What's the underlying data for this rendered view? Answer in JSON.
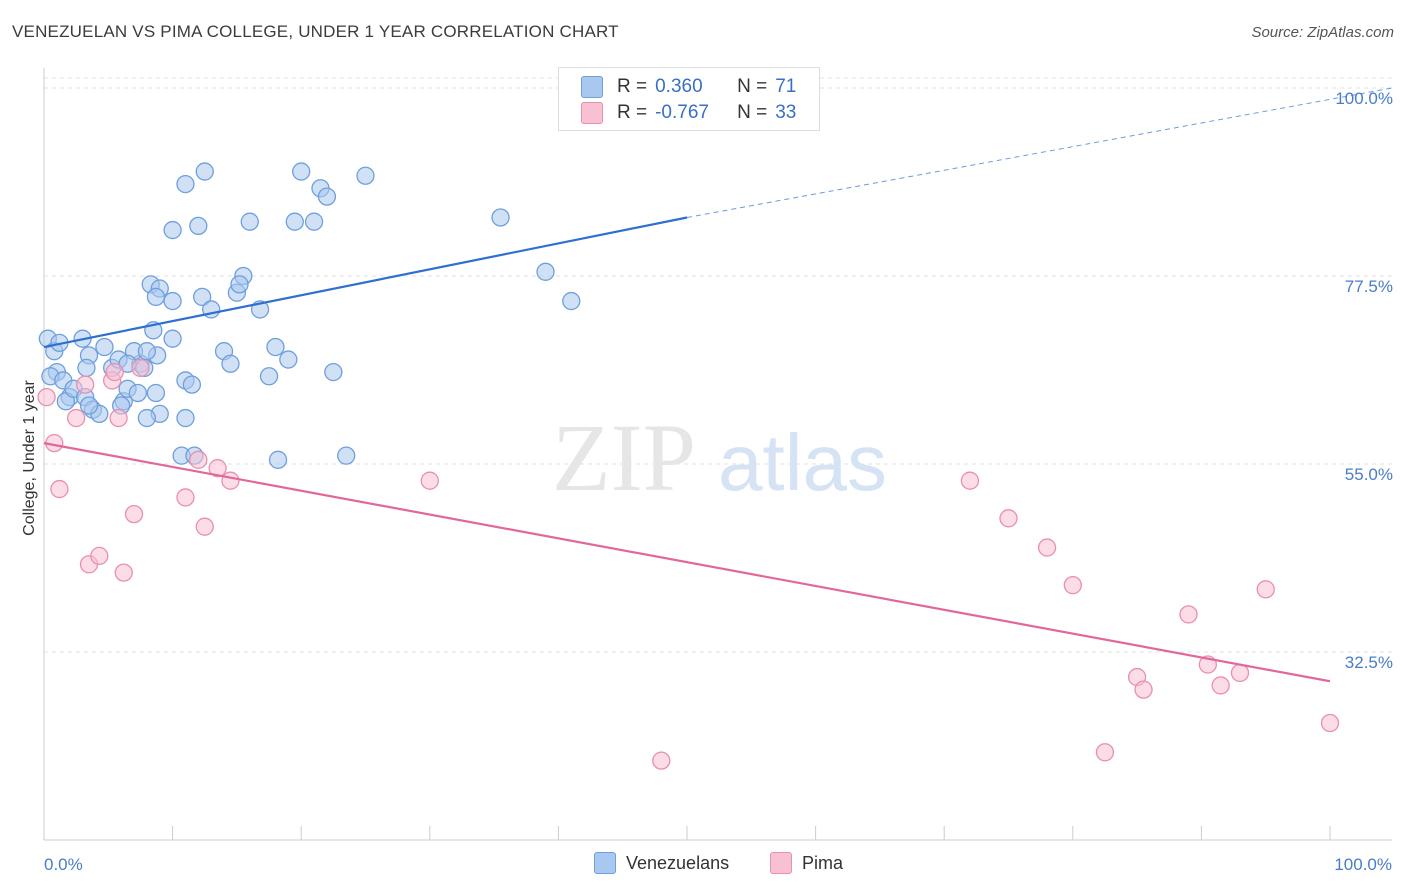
{
  "title": "VENEZUELAN VS PIMA COLLEGE, UNDER 1 YEAR CORRELATION CHART",
  "source": "Source: ZipAtlas.com",
  "watermark": {
    "zip": "ZIP",
    "atlas": "atlas"
  },
  "legend": {
    "rows": [
      {
        "r_label": "R =",
        "r_value": "0.360",
        "n_label": "N =",
        "n_value": "71",
        "color": "#a9c8ef",
        "border": "#6f9fdc"
      },
      {
        "r_label": "R =",
        "r_value": "-0.767",
        "n_label": "N =",
        "n_value": "33",
        "color": "#f7c0d3",
        "border": "#e890ad"
      }
    ]
  },
  "bottom_legend": [
    {
      "label": "Venezuelans",
      "color": "#a9c8ef",
      "border": "#6f9fdc"
    },
    {
      "label": "Pima",
      "color": "#f7c0d3",
      "border": "#e890ad"
    }
  ],
  "chart_data": {
    "type": "scatter",
    "title": "VENEZUELAN VS PIMA COLLEGE, UNDER 1 YEAR CORRELATION CHART",
    "xlabel": "",
    "ylabel": "College, Under 1 year",
    "xlim": [
      0,
      100
    ],
    "ylim": [
      10,
      105
    ],
    "x_tick_labels": [
      "0.0%",
      "100.0%"
    ],
    "y_ticks": [
      32.5,
      55.0,
      77.5,
      100.0
    ],
    "y_tick_labels": [
      "32.5%",
      "55.0%",
      "77.5%",
      "100.0%"
    ],
    "grid": "horizontal dashed",
    "legend_position": "top-center",
    "series": [
      {
        "name": "Venezuelans",
        "color": "#6f9fdc",
        "fill": "#a9c8ef",
        "trend": {
          "x0": 0,
          "y0": 69.0,
          "x1": 50,
          "y1": 84.5,
          "dashed_to": {
            "x": 100,
            "y": 100.0
          },
          "color": "#2f6fd0"
        },
        "points": [
          [
            0.3,
            70.0
          ],
          [
            0.8,
            68.5
          ],
          [
            1.2,
            69.5
          ],
          [
            1.0,
            66.0
          ],
          [
            0.5,
            65.5
          ],
          [
            1.5,
            65.0
          ],
          [
            2.0,
            63.0
          ],
          [
            1.7,
            62.5
          ],
          [
            2.3,
            64.0
          ],
          [
            3.0,
            70.0
          ],
          [
            3.5,
            68.0
          ],
          [
            3.2,
            63.0
          ],
          [
            3.8,
            61.5
          ],
          [
            3.3,
            66.5
          ],
          [
            4.3,
            61.0
          ],
          [
            3.5,
            62.0
          ],
          [
            4.7,
            69.0
          ],
          [
            5.3,
            66.5
          ],
          [
            5.8,
            67.5
          ],
          [
            6.2,
            62.5
          ],
          [
            6.5,
            64.0
          ],
          [
            6.0,
            62.0
          ],
          [
            7.3,
            63.5
          ],
          [
            7.5,
            67.0
          ],
          [
            7.8,
            66.5
          ],
          [
            7.0,
            68.5
          ],
          [
            6.5,
            67.0
          ],
          [
            8.5,
            71.0
          ],
          [
            8.3,
            76.5
          ],
          [
            9.0,
            76.0
          ],
          [
            8.7,
            75.0
          ],
          [
            10.0,
            70.0
          ],
          [
            10.0,
            74.5
          ],
          [
            8.8,
            68.0
          ],
          [
            8.0,
            68.5
          ],
          [
            8.7,
            63.5
          ],
          [
            9.0,
            61.0
          ],
          [
            8.0,
            60.5
          ],
          [
            11.0,
            65.0
          ],
          [
            11.5,
            64.5
          ],
          [
            11.0,
            60.5
          ],
          [
            10.7,
            56.0
          ],
          [
            11.7,
            56.0
          ],
          [
            12.3,
            75.0
          ],
          [
            12.5,
            90.0
          ],
          [
            13.0,
            73.5
          ],
          [
            12.0,
            83.5
          ],
          [
            11.0,
            88.5
          ],
          [
            10.0,
            83.0
          ],
          [
            14.0,
            68.5
          ],
          [
            14.5,
            67.0
          ],
          [
            15.0,
            75.5
          ],
          [
            15.5,
            77.5
          ],
          [
            15.2,
            76.5
          ],
          [
            16.0,
            84.0
          ],
          [
            16.8,
            73.5
          ],
          [
            17.5,
            65.5
          ],
          [
            18.0,
            69.0
          ],
          [
            18.2,
            55.5
          ],
          [
            19.0,
            67.5
          ],
          [
            19.5,
            84.0
          ],
          [
            20.0,
            90.0
          ],
          [
            21.5,
            88.0
          ],
          [
            22.0,
            87.0
          ],
          [
            21.0,
            84.0
          ],
          [
            22.5,
            66.0
          ],
          [
            23.5,
            56.0
          ],
          [
            25.0,
            89.5
          ],
          [
            35.5,
            84.5
          ],
          [
            39.0,
            78.0
          ],
          [
            41.0,
            74.5
          ]
        ]
      },
      {
        "name": "Pima",
        "color": "#e890ad",
        "fill": "#f7c0d3",
        "trend": {
          "x0": 0,
          "y0": 57.5,
          "x1": 100,
          "y1": 29.0,
          "color": "#e0689a"
        },
        "points": [
          [
            0.2,
            63.0
          ],
          [
            0.8,
            57.5
          ],
          [
            1.2,
            52.0
          ],
          [
            2.5,
            60.5
          ],
          [
            3.2,
            64.5
          ],
          [
            3.5,
            43.0
          ],
          [
            4.3,
            44.0
          ],
          [
            5.3,
            65.0
          ],
          [
            5.8,
            60.5
          ],
          [
            5.5,
            66.0
          ],
          [
            6.2,
            42.0
          ],
          [
            7.0,
            49.0
          ],
          [
            7.5,
            66.5
          ],
          [
            11.0,
            51.0
          ],
          [
            12.0,
            55.5
          ],
          [
            12.5,
            47.5
          ],
          [
            13.5,
            54.5
          ],
          [
            14.5,
            53.0
          ],
          [
            30.0,
            53.0
          ],
          [
            48.0,
            19.5
          ],
          [
            72.0,
            53.0
          ],
          [
            75.0,
            48.5
          ],
          [
            78.0,
            45.0
          ],
          [
            80.0,
            40.5
          ],
          [
            82.5,
            20.5
          ],
          [
            85.0,
            29.5
          ],
          [
            85.5,
            28.0
          ],
          [
            89.0,
            37.0
          ],
          [
            90.5,
            31.0
          ],
          [
            91.5,
            28.5
          ],
          [
            93.0,
            30.0
          ],
          [
            95.0,
            40.0
          ],
          [
            100.0,
            24.0
          ]
        ]
      }
    ]
  }
}
